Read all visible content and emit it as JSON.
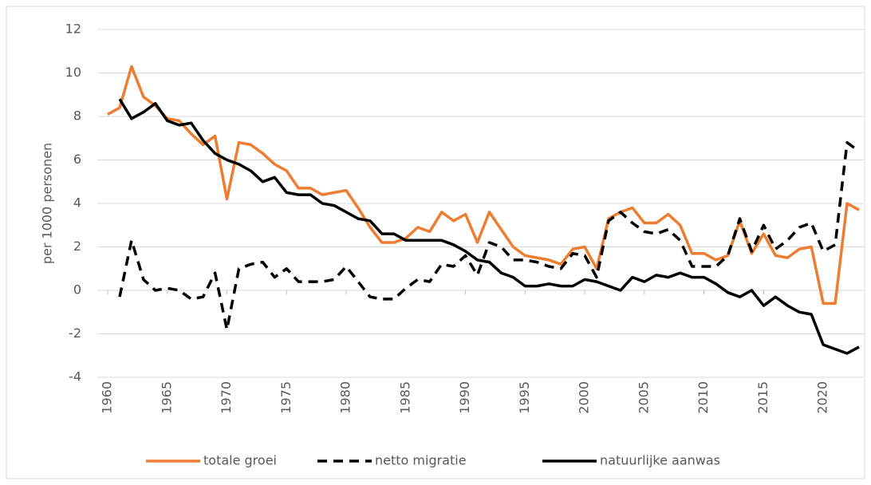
{
  "chart_data": {
    "type": "line",
    "y_label": "per 1000 personen",
    "x": [
      1960,
      1961,
      1962,
      1963,
      1964,
      1965,
      1966,
      1967,
      1968,
      1969,
      1970,
      1971,
      1972,
      1973,
      1974,
      1975,
      1976,
      1977,
      1978,
      1979,
      1980,
      1981,
      1982,
      1983,
      1984,
      1985,
      1986,
      1987,
      1988,
      1989,
      1990,
      1991,
      1992,
      1993,
      1994,
      1995,
      1996,
      1997,
      1998,
      1999,
      2000,
      2001,
      2002,
      2003,
      2004,
      2005,
      2006,
      2007,
      2008,
      2009,
      2010,
      2011,
      2012,
      2013,
      2014,
      2015,
      2016,
      2017,
      2018,
      2019,
      2020,
      2021,
      2022,
      2023
    ],
    "series": [
      {
        "name": "totale groei",
        "color": "#ed7d31",
        "dash": false,
        "values": [
          8.1,
          8.4,
          10.3,
          8.9,
          8.5,
          7.9,
          7.8,
          7.2,
          6.7,
          7.1,
          4.2,
          6.8,
          6.7,
          6.3,
          5.8,
          5.5,
          4.7,
          4.7,
          4.4,
          4.5,
          4.6,
          3.8,
          2.9,
          2.2,
          2.2,
          2.4,
          2.9,
          2.7,
          3.6,
          3.2,
          3.5,
          2.2,
          3.6,
          2.8,
          2.0,
          1.6,
          1.5,
          1.4,
          1.2,
          1.9,
          2.0,
          1.0,
          3.3,
          3.6,
          3.8,
          3.1,
          3.1,
          3.5,
          3.0,
          1.7,
          1.7,
          1.4,
          1.6,
          3.2,
          1.7,
          2.6,
          1.6,
          1.5,
          1.9,
          2.0,
          -0.6,
          -0.6,
          4.0,
          3.7
        ]
      },
      {
        "name": "netto migratie",
        "color": "#000000",
        "dash": true,
        "values": [
          null,
          -0.3,
          2.3,
          0.5,
          0.0,
          0.1,
          0.0,
          -0.4,
          -0.3,
          0.8,
          -1.8,
          1.0,
          1.2,
          1.3,
          0.6,
          1.0,
          0.4,
          0.4,
          0.4,
          0.5,
          1.1,
          0.4,
          -0.3,
          -0.4,
          -0.4,
          0.1,
          0.5,
          0.4,
          1.2,
          1.1,
          1.6,
          0.7,
          2.2,
          2.0,
          1.4,
          1.4,
          1.3,
          1.1,
          1.0,
          1.7,
          1.6,
          0.6,
          3.2,
          3.6,
          3.1,
          2.7,
          2.6,
          2.8,
          2.3,
          1.1,
          1.1,
          1.1,
          1.6,
          3.3,
          1.8,
          3.0,
          1.9,
          2.3,
          2.9,
          3.1,
          1.8,
          2.1,
          6.8,
          6.4
        ]
      },
      {
        "name": "natuurlijke aanwas",
        "color": "#000000",
        "dash": false,
        "values": [
          null,
          8.8,
          7.9,
          8.2,
          8.6,
          7.8,
          7.6,
          7.7,
          6.9,
          6.3,
          6.0,
          5.8,
          5.5,
          5.0,
          5.2,
          4.5,
          4.4,
          4.4,
          4.0,
          3.9,
          3.6,
          3.3,
          3.2,
          2.6,
          2.6,
          2.3,
          2.3,
          2.3,
          2.3,
          2.1,
          1.8,
          1.4,
          1.3,
          0.8,
          0.6,
          0.2,
          0.2,
          0.3,
          0.2,
          0.2,
          0.5,
          0.4,
          0.2,
          0.0,
          0.6,
          0.4,
          0.7,
          0.6,
          0.8,
          0.6,
          0.6,
          0.3,
          -0.1,
          -0.3,
          0.0,
          -0.7,
          -0.3,
          -0.7,
          -1.0,
          -1.1,
          -2.5,
          -2.7,
          -2.9,
          -2.6
        ]
      }
    ],
    "xlim": [
      1960,
      2023
    ],
    "xticks": [
      1960,
      1965,
      1970,
      1975,
      1980,
      1985,
      1990,
      1995,
      2000,
      2005,
      2010,
      2015,
      2020
    ],
    "ylim": [
      -4,
      12
    ],
    "yticks": [
      -4,
      -2,
      0,
      2,
      4,
      6,
      8,
      10,
      12
    ],
    "grid": true,
    "legend": "bottom"
  }
}
